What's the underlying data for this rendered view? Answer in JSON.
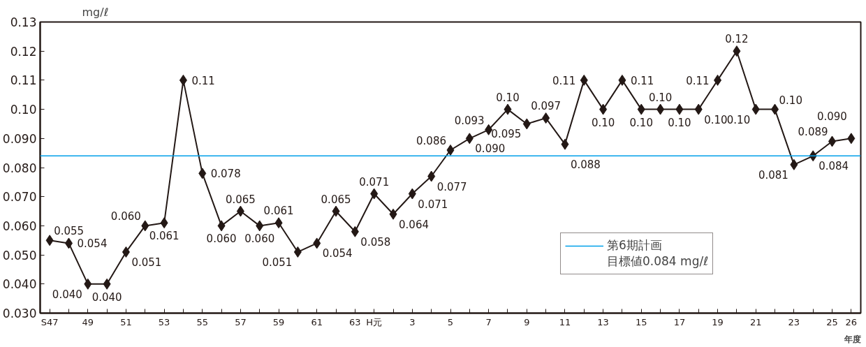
{
  "chart_data": {
    "type": "line",
    "ylabel": "mg/ℓ",
    "xlabel": "年度",
    "categories": [
      "S47",
      null,
      "49",
      null,
      "51",
      null,
      "53",
      null,
      "55",
      null,
      "57",
      null,
      "59",
      null,
      "61",
      null,
      "63",
      "H元",
      null,
      "3",
      null,
      "5",
      null,
      "7",
      null,
      "9",
      null,
      "11",
      null,
      "13",
      null,
      "15",
      null,
      "17",
      null,
      "19",
      null,
      "21",
      null,
      "23",
      null,
      "25",
      "26"
    ],
    "series": [
      {
        "color": "#231815",
        "values": [
          0.055,
          0.054,
          0.04,
          0.04,
          0.051,
          0.06,
          0.061,
          0.11,
          0.078,
          0.06,
          0.065,
          0.06,
          0.061,
          0.051,
          0.054,
          0.065,
          0.058,
          0.071,
          0.064,
          0.071,
          0.077,
          0.086,
          0.09,
          0.093,
          0.1,
          0.095,
          0.097,
          0.088,
          0.11,
          0.1,
          0.11,
          0.1,
          0.1,
          0.1,
          0.1,
          0.11,
          0.12,
          0.1,
          0.1,
          0.081,
          0.084,
          0.089,
          0.09
        ],
        "value_labels": [
          "0.055",
          "0.054",
          "0.040",
          "0.040",
          "0.051",
          "0.060",
          "0.061",
          "0.11",
          "0.078",
          "0.060",
          "0.065",
          "0.060",
          "0.061",
          "0.051",
          "0.054",
          "0.065",
          "0.058",
          "0.071",
          "0.064",
          "0.071",
          "0.077",
          "0.086",
          "0.090",
          "0.093",
          "0.10",
          "0.095",
          "0.097",
          "0.088",
          "0.11",
          "0.10",
          "0.11",
          "0.10",
          "0.10",
          "0.10",
          "0.10",
          "0.11",
          "0.12",
          "0.10",
          "0.10",
          "0.081",
          "0.084",
          "0.089",
          "0.090"
        ]
      }
    ],
    "ylim": [
      0.03,
      0.13
    ],
    "yticks": [
      {
        "value": 0.03,
        "label": "0.030"
      },
      {
        "value": 0.04,
        "label": "0.040"
      },
      {
        "value": 0.05,
        "label": "0.050"
      },
      {
        "value": 0.06,
        "label": "0.060"
      },
      {
        "value": 0.07,
        "label": "0.070"
      },
      {
        "value": 0.08,
        "label": "0.080"
      },
      {
        "value": 0.09,
        "label": "0.090"
      },
      {
        "value": 0.1,
        "label": "0.10"
      },
      {
        "value": 0.11,
        "label": "0.11"
      },
      {
        "value": 0.12,
        "label": "0.12"
      },
      {
        "value": 0.13,
        "label": "0.13"
      }
    ],
    "ref_lines": [
      {
        "axis": "y",
        "value": 0.084,
        "label": "第6期計画",
        "color": "#00a0e9"
      }
    ],
    "annotations": [
      "目標値0.084 mg/ℓ"
    ],
    "marker": "diamond",
    "line_style": "solid",
    "grid": false,
    "legend": "bottom right"
  }
}
